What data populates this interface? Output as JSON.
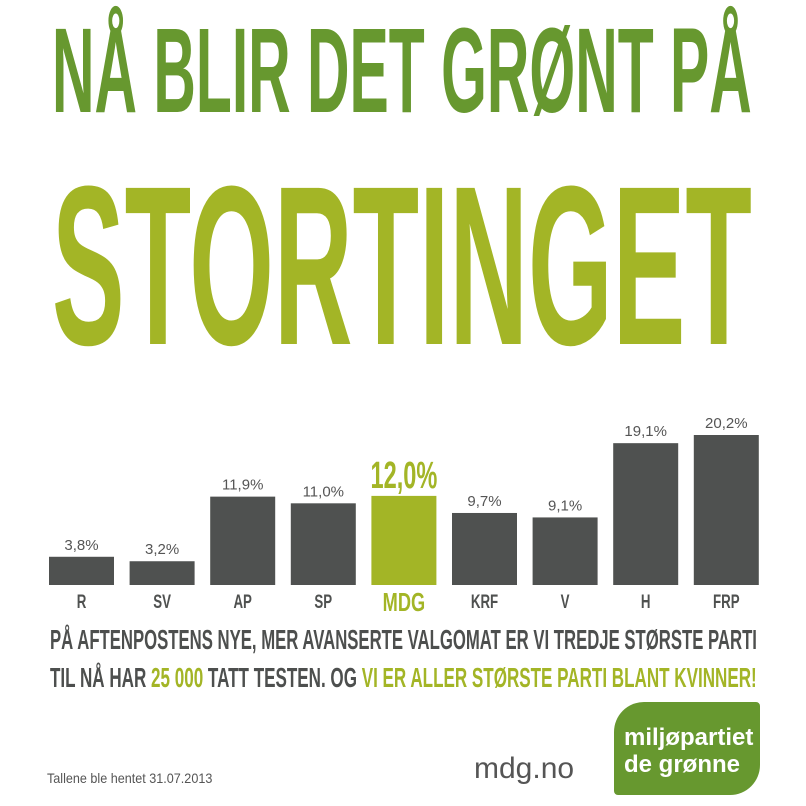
{
  "headline": {
    "line1": "NÅ BLIR DET GRØNT PÅ",
    "line2": "STORTINGET"
  },
  "colors": {
    "dark_green": "#67982f",
    "light_green": "#a3b526",
    "bar": "#4f5150",
    "text": "#4d4f4e"
  },
  "chart_data": {
    "type": "bar",
    "title": "",
    "xlabel": "",
    "ylabel": "",
    "categories": [
      "R",
      "SV",
      "AP",
      "SP",
      "MDG",
      "KRF",
      "V",
      "H",
      "FRP"
    ],
    "values": [
      3.8,
      3.2,
      11.9,
      11.0,
      12.0,
      9.7,
      9.1,
      19.1,
      20.2
    ],
    "labels": [
      "3,8%",
      "3,2%",
      "11,9%",
      "11,0%",
      "12,0%",
      "9,7%",
      "9,1%",
      "19,1%",
      "20,2%"
    ],
    "highlight": "MDG",
    "ylim": [
      0,
      20.2
    ],
    "grid": false
  },
  "text": {
    "line1": "PÅ AFTENPOSTENS NYE, MER AVANSERTE VALGOMAT ER VI TREDJE STØRSTE PARTI",
    "line2_a": "TIL NÅ HAR ",
    "line2_b": "25 000",
    "line2_c": " TATT TESTEN. OG ",
    "line2_d": "VI ER ALLER STØRSTE PARTI BLANT KVINNER!"
  },
  "footer": {
    "note": "Tallene ble hentet 31.07.2013",
    "url": "mdg.no",
    "logo_line1": "miljøpartiet",
    "logo_line2": "de grønne"
  }
}
